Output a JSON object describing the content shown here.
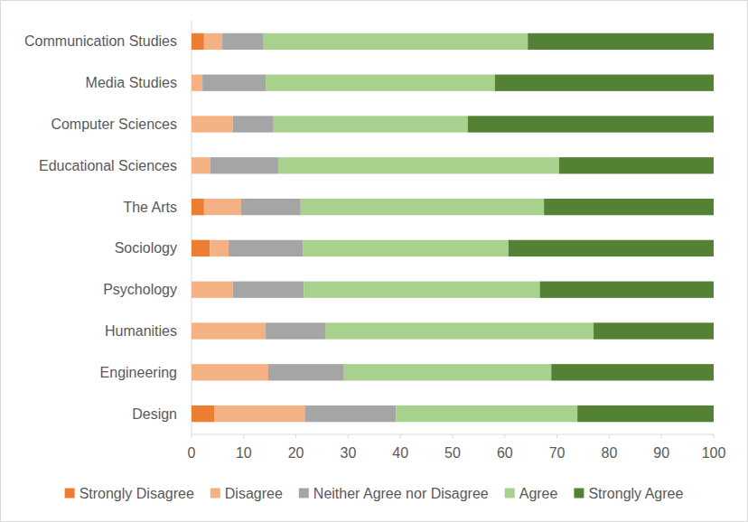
{
  "chart_data": {
    "type": "bar",
    "orientation": "horizontal",
    "stacked": true,
    "grid": false,
    "legend": "bottom",
    "categories": [
      "Communication Studies",
      "Media Studies",
      "Computer Sciences",
      "Educational Sciences",
      "The Arts",
      "Sociology",
      "Psychology",
      "Humanities",
      "Engineering",
      "Design"
    ],
    "series": [
      {
        "name": "Strongly Disagree",
        "color": "#ed7d31",
        "values": [
          2.4,
          0,
          0,
          0,
          2.4,
          3.5,
          0,
          0,
          0,
          4.4
        ]
      },
      {
        "name": "Disagree",
        "color": "#f4b183",
        "values": [
          3.5,
          2.1,
          7.9,
          3.6,
          7.1,
          3.6,
          7.9,
          14.2,
          14.7,
          17.3
        ]
      },
      {
        "name": "Neither Agree nor Disagree",
        "color": "#a5a5a5",
        "values": [
          7.9,
          12.1,
          7.8,
          13.0,
          11.4,
          14.2,
          13.6,
          11.4,
          14.5,
          17.5
        ]
      },
      {
        "name": "Agree",
        "color": "#a9d18e",
        "values": [
          50.6,
          43.9,
          37.2,
          53.8,
          46.6,
          39.4,
          45.2,
          51.4,
          39.7,
          34.7
        ]
      },
      {
        "name": "Strongly Agree",
        "color": "#548235",
        "values": [
          35.6,
          41.9,
          47.1,
          29.6,
          32.5,
          39.3,
          33.3,
          23.0,
          31.1,
          26.1
        ]
      }
    ],
    "xlim": [
      0,
      100
    ],
    "xticks": [
      0,
      10,
      20,
      30,
      40,
      50,
      60,
      70,
      80,
      90,
      100
    ]
  }
}
